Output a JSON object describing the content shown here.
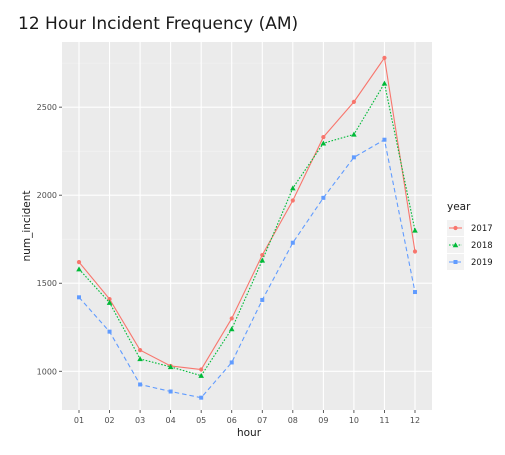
{
  "chart_data": {
    "type": "line",
    "title": "12 Hour Incident Frequency (AM)",
    "xlabel": "hour",
    "ylabel": "num_incident",
    "categories": [
      "01",
      "02",
      "03",
      "04",
      "05",
      "06",
      "07",
      "08",
      "09",
      "10",
      "11",
      "12"
    ],
    "ylim": [
      780,
      2870
    ],
    "yticks": [
      1000,
      1500,
      2000,
      2500
    ],
    "grid": true,
    "legend": {
      "title": "year",
      "placement": "right"
    },
    "series": [
      {
        "name": "2017",
        "color": "#F8766D",
        "marker": "circle",
        "dash": "solid",
        "values": [
          1620,
          1410,
          1120,
          1030,
          1010,
          1300,
          1660,
          1970,
          2330,
          2530,
          2780,
          1680
        ]
      },
      {
        "name": "2018",
        "color": "#00BA38",
        "marker": "triangle",
        "dash": "dotted",
        "values": [
          1580,
          1390,
          1070,
          1025,
          975,
          1240,
          1630,
          2040,
          2295,
          2345,
          2635,
          1800
        ]
      },
      {
        "name": "2019",
        "color": "#619CFF",
        "marker": "square",
        "dash": "dashed",
        "values": [
          1420,
          1225,
          925,
          885,
          850,
          1050,
          1405,
          1730,
          1985,
          2215,
          2315,
          1450
        ]
      }
    ]
  }
}
